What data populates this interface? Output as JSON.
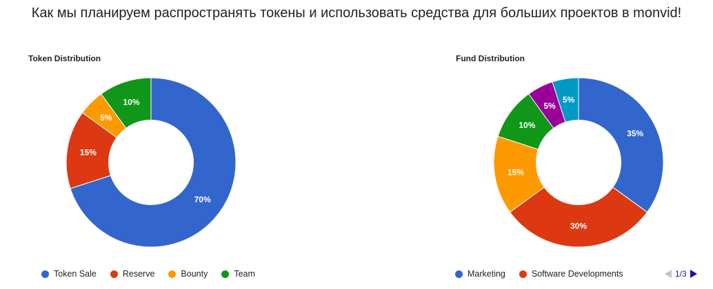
{
  "headline": "Как мы планируем распространять токены и использовать средства для больших проектов в monvid!",
  "chart_data": [
    {
      "type": "pie",
      "title": "Token Distribution",
      "hole": 0.5,
      "categories": [
        "Token Sale",
        "Reserve",
        "Bounty",
        "Team"
      ],
      "values": [
        70,
        15,
        5,
        10
      ],
      "labels": [
        "70%",
        "15%",
        "5%",
        "10%"
      ],
      "colors": [
        "#3366cc",
        "#dc3912",
        "#ff9900",
        "#109618"
      ],
      "legend": "bottom",
      "legend_visible": [
        "Token Sale",
        "Reserve",
        "Bounty",
        "Team"
      ]
    },
    {
      "type": "pie",
      "title": "Fund Distribution",
      "hole": 0.5,
      "categories": [
        "Marketing",
        "Software Developments",
        "",
        "",
        "",
        ""
      ],
      "values": [
        35,
        30,
        15,
        10,
        5,
        5
      ],
      "labels": [
        "35%",
        "30%",
        "15%",
        "10%",
        "5%",
        "5%"
      ],
      "colors": [
        "#3366cc",
        "#dc3912",
        "#ff9900",
        "#109618",
        "#990099",
        "#0099c6"
      ],
      "legend": "bottom",
      "legend_visible": [
        "Marketing",
        "Software Developments"
      ],
      "legend_page": "1/3"
    }
  ]
}
